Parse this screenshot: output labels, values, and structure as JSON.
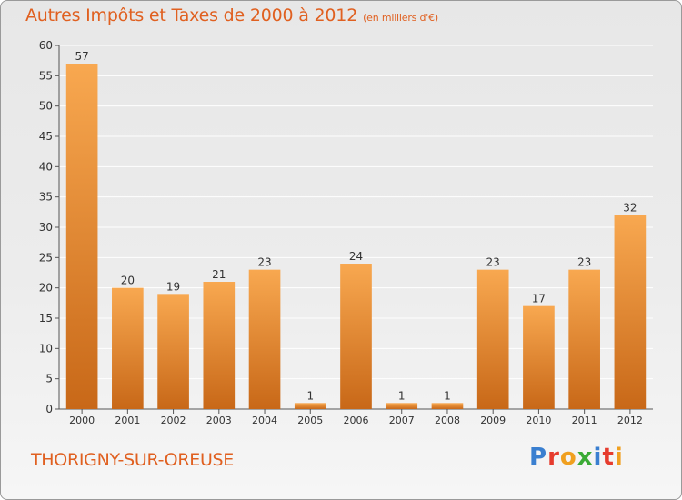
{
  "title": "Autres Impôts et Taxes de 2000 à 2012",
  "subtitle": "(en milliers d'€)",
  "commune": "THORIGNY-SUR-OREUSE",
  "logo": {
    "text": "Proxiti",
    "letters": [
      {
        "ch": "P",
        "color": "#3a7fd0"
      },
      {
        "ch": "r",
        "color": "#e63c2e"
      },
      {
        "ch": "o",
        "color": "#f0a020"
      },
      {
        "ch": "x",
        "color": "#3aaa35"
      },
      {
        "ch": "i",
        "color": "#3a7fd0"
      },
      {
        "ch": "t",
        "color": "#e63c2e"
      },
      {
        "ch": "i",
        "color": "#f0a020"
      }
    ]
  },
  "colors": {
    "title": "#e06020",
    "bar_light": "#f8a850",
    "bar_dark": "#c86818",
    "grid": "#ffffff",
    "axis": "#555555"
  },
  "chart_data": {
    "type": "bar",
    "categories": [
      "2000",
      "2001",
      "2002",
      "2003",
      "2004",
      "2005",
      "2006",
      "2007",
      "2008",
      "2009",
      "2010",
      "2011",
      "2012"
    ],
    "values": [
      57,
      20,
      19,
      21,
      23,
      1,
      24,
      1,
      1,
      23,
      17,
      23,
      32
    ],
    "data_labels": [
      "57",
      "20",
      "19",
      "21",
      "23",
      "1",
      "24",
      "1",
      "1",
      "23",
      "17",
      "23",
      "32"
    ],
    "ylim": [
      0,
      60
    ],
    "yticks": [
      "0",
      "5",
      "10",
      "15",
      "20",
      "25",
      "30",
      "35",
      "40",
      "45",
      "50",
      "55",
      "60"
    ],
    "grid": true,
    "legend": "none"
  }
}
